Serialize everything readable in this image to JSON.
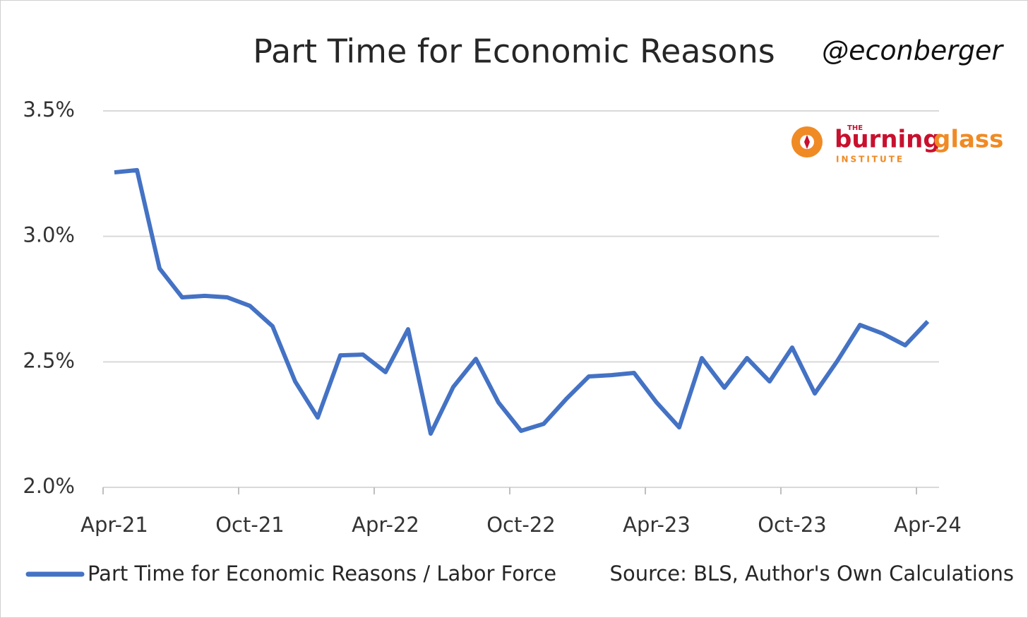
{
  "chart_data": {
    "type": "line",
    "title": "Part Time for Economic Reasons",
    "watermark": "@econberger",
    "logo": {
      "top": "THE",
      "name_a": "burning",
      "name_b": "glass",
      "bottom": "INSTITUTE"
    },
    "source": "Source: BLS, Author's Own Calculations",
    "categories": [
      "Apr-21",
      null,
      null,
      null,
      null,
      null,
      "Oct-21",
      null,
      null,
      null,
      null,
      null,
      "Apr-22",
      null,
      null,
      null,
      null,
      null,
      "Oct-22",
      null,
      null,
      null,
      null,
      null,
      "Apr-23",
      null,
      null,
      null,
      null,
      null,
      "Oct-23",
      null,
      null,
      null,
      null,
      null,
      "Apr-24"
    ],
    "series": [
      {
        "name": "Part Time for Economic Reasons / Labor Force",
        "color": "#4472c4",
        "values": [
          3.255,
          3.264,
          2.872,
          2.757,
          2.763,
          2.757,
          2.723,
          2.642,
          2.422,
          2.278,
          2.526,
          2.529,
          2.459,
          2.63,
          2.214,
          2.4,
          2.512,
          2.338,
          2.225,
          2.253,
          2.352,
          2.442,
          2.447,
          2.456,
          2.338,
          2.239,
          2.515,
          2.397,
          2.515,
          2.422,
          2.557,
          2.374,
          2.504,
          2.647,
          2.613,
          2.566,
          2.661
        ]
      }
    ],
    "ylim": [
      2.0,
      3.5
    ],
    "yticks": [
      {
        "value": 2.0,
        "label": "2.0%"
      },
      {
        "value": 2.5,
        "label": "2.5%"
      },
      {
        "value": 3.0,
        "label": "3.0%"
      },
      {
        "value": 3.5,
        "label": "3.5%"
      }
    ],
    "grid": true
  }
}
